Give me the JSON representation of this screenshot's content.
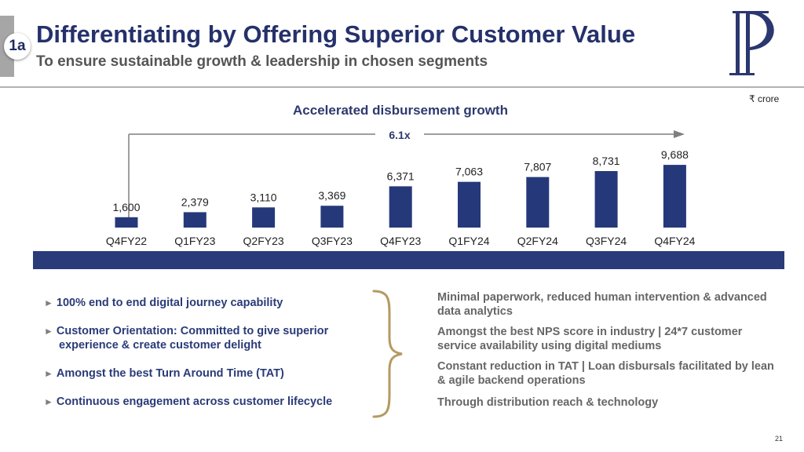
{
  "header": {
    "section_badge": "1a",
    "title": "Differentiating by Offering Superior Customer Value",
    "subtitle": "To ensure sustainable growth & leadership in chosen segments",
    "logo_letter": "P"
  },
  "chart_data": {
    "type": "bar",
    "title": "Accelerated disbursement growth",
    "unit_label": "₹ crore",
    "growth_label": "6.1x",
    "categories": [
      "Q4FY22",
      "Q1FY23",
      "Q2FY23",
      "Q3FY23",
      "Q4FY23",
      "Q1FY24",
      "Q2FY24",
      "Q3FY24",
      "Q4FY24"
    ],
    "values": [
      1600,
      2379,
      3110,
      3369,
      6371,
      7063,
      7807,
      8731,
      9688
    ],
    "value_labels": [
      "1,600",
      "2,379",
      "3,110",
      "3,369",
      "6,371",
      "7,063",
      "7,807",
      "8,731",
      "9,688"
    ],
    "ylim": [
      0,
      10000
    ],
    "bar_color": "#25397a",
    "xlabel": "",
    "ylabel": ""
  },
  "bullets": [
    {
      "line1": "100% end to end digital journey capability",
      "line2": ""
    },
    {
      "line1": "Customer Orientation: Committed to give superior",
      "line2": "experience & create customer delight"
    },
    {
      "line1": "Amongst the best Turn Around Time (TAT)",
      "line2": ""
    },
    {
      "line1": "Continuous engagement across customer lifecycle",
      "line2": ""
    }
  ],
  "bullet_marker": "►",
  "outcomes": [
    "Minimal paperwork, reduced human intervention & advanced data analytics",
    "Amongst the best NPS score in industry | 24*7 customer service availability using digital mediums",
    "Constant reduction in TAT | Loan disbursals facilitated by lean & agile backend operations",
    "Through distribution reach & technology"
  ],
  "footer": {
    "page_number": "21"
  },
  "colors": {
    "navy": "#25316b",
    "band": "#2a3b7a",
    "gold": "#b39b63",
    "grey_text": "#666666"
  }
}
